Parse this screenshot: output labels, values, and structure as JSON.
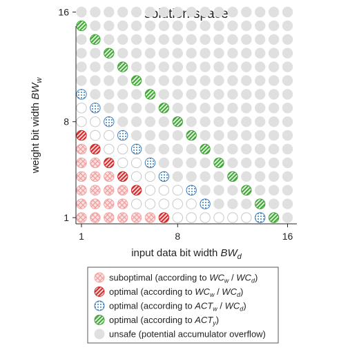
{
  "chart_data": {
    "type": "scatter",
    "title": "solution space",
    "xlabel": "input data bit width BW_d",
    "ylabel": "weight bit width BW_w",
    "xlabel_parts": {
      "text": "input data bit width ",
      "symbol": "BW",
      "sub": "d"
    },
    "ylabel_parts": {
      "text": "weight bit width ",
      "symbol": "BW",
      "sub": "w"
    },
    "xlim": [
      1,
      16
    ],
    "ylim": [
      1,
      16
    ],
    "xticks": [
      1,
      8,
      16
    ],
    "yticks": [
      1,
      8,
      16
    ],
    "grid_size": 16,
    "categories": {
      "suboptimal": {
        "label": "suboptimal (according to WC_w / WC_d)",
        "color": "#f4a3a3",
        "pattern": "crosshatch"
      },
      "opt_wc": {
        "label": "optimal (according to WC_w / WC_d)",
        "color": "#d62728",
        "pattern": "stripes"
      },
      "opt_act_wc": {
        "label": "optimal (according to ACT_w / WC_d)",
        "color": "#3a7bbf",
        "pattern": "dots"
      },
      "opt_act_y": {
        "label": "optimal (according to ACT_y)",
        "color": "#3fa535",
        "pattern": "stripes"
      },
      "unsafe": {
        "label": "unsafe (potential accumulator overflow)",
        "color": "#e0e0e0",
        "pattern": "solid"
      },
      "empty": {
        "label": "",
        "color": "#ffffff",
        "pattern": "none"
      }
    },
    "series": [
      {
        "key": "suboptimal",
        "points": [
          [
            1,
            1
          ],
          [
            2,
            1
          ],
          [
            3,
            1
          ],
          [
            4,
            1
          ],
          [
            5,
            1
          ],
          [
            6,
            1
          ],
          [
            1,
            2
          ],
          [
            2,
            2
          ],
          [
            3,
            2
          ],
          [
            4,
            2
          ],
          [
            1,
            3
          ],
          [
            2,
            3
          ],
          [
            3,
            3
          ],
          [
            4,
            3
          ],
          [
            1,
            4
          ],
          [
            2,
            4
          ],
          [
            3,
            4
          ],
          [
            1,
            5
          ],
          [
            2,
            5
          ],
          [
            1,
            6
          ]
        ]
      },
      {
        "key": "opt_wc",
        "points": [
          [
            7,
            1
          ],
          [
            5,
            3
          ],
          [
            4,
            4
          ],
          [
            3,
            5
          ],
          [
            2,
            6
          ],
          [
            1,
            7
          ]
        ]
      },
      {
        "key": "opt_act_wc",
        "points": [
          [
            14,
            1
          ],
          [
            10,
            2
          ],
          [
            9,
            3
          ],
          [
            7,
            4
          ],
          [
            6,
            5
          ],
          [
            5,
            6
          ],
          [
            4,
            7
          ],
          [
            3,
            8
          ],
          [
            2,
            9
          ],
          [
            1,
            10
          ]
        ]
      },
      {
        "key": "opt_act_y",
        "points": [
          [
            15,
            1
          ],
          [
            14,
            2
          ],
          [
            13,
            3
          ],
          [
            12,
            4
          ],
          [
            11,
            5
          ],
          [
            10,
            6
          ],
          [
            9,
            7
          ],
          [
            8,
            8
          ],
          [
            7,
            9
          ],
          [
            6,
            10
          ],
          [
            5,
            11
          ],
          [
            4,
            12
          ],
          [
            3,
            13
          ],
          [
            2,
            14
          ],
          [
            1,
            15
          ]
        ]
      },
      {
        "key": "empty",
        "points": [
          [
            8,
            1
          ],
          [
            9,
            1
          ],
          [
            10,
            1
          ],
          [
            11,
            1
          ],
          [
            12,
            1
          ],
          [
            13,
            1
          ],
          [
            5,
            2
          ],
          [
            6,
            2
          ],
          [
            7,
            2
          ],
          [
            8,
            2
          ],
          [
            9,
            2
          ],
          [
            6,
            3
          ],
          [
            7,
            3
          ],
          [
            8,
            3
          ],
          [
            5,
            4
          ],
          [
            6,
            4
          ],
          [
            4,
            5
          ],
          [
            5,
            5
          ],
          [
            3,
            6
          ],
          [
            4,
            6
          ],
          [
            2,
            7
          ],
          [
            3,
            7
          ],
          [
            1,
            8
          ],
          [
            2,
            8
          ],
          [
            1,
            9
          ]
        ]
      }
    ],
    "default_key": "unsafe",
    "legend": {
      "placement": "bottom",
      "entries": [
        {
          "key": "suboptimal",
          "text": "suboptimal (according to ",
          "m1": "WC",
          "s1": "w",
          "m2": "WC",
          "s2": "d",
          "tail": ")"
        },
        {
          "key": "opt_wc",
          "text": "optimal (according to ",
          "m1": "WC",
          "s1": "w",
          "m2": "WC",
          "s2": "d",
          "tail": ")"
        },
        {
          "key": "opt_act_wc",
          "text": "optimal (according to ",
          "m1": "ACT",
          "s1": "w",
          "m2": "WC",
          "s2": "d",
          "tail": ")"
        },
        {
          "key": "opt_act_y",
          "text": "optimal (according to ",
          "m1": "ACT",
          "s1": "y",
          "m2": "",
          "s2": "",
          "tail": ")"
        },
        {
          "key": "unsafe",
          "text": "unsafe (potential accumulator overflow)",
          "m1": "",
          "s1": "",
          "m2": "",
          "s2": "",
          "tail": ""
        }
      ]
    }
  }
}
